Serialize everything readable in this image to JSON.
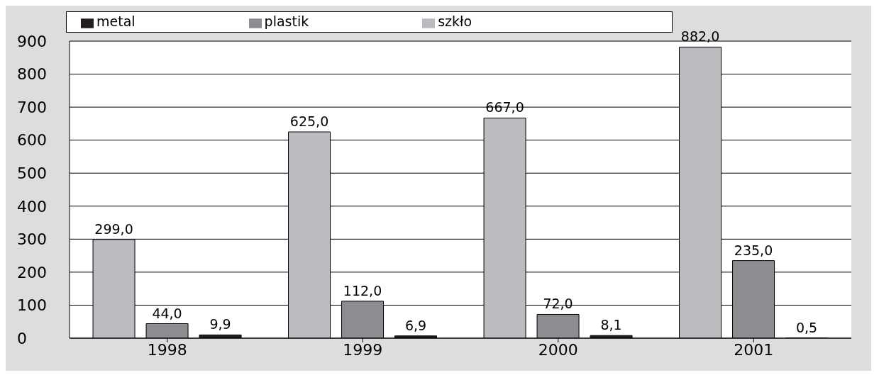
{
  "chart_data": {
    "type": "bar",
    "categories": [
      "1998",
      "1999",
      "2000",
      "2001"
    ],
    "series": [
      {
        "name": "szkło",
        "color": "#bbbcc0",
        "values": [
          299.0,
          625.0,
          667.0,
          882.0
        ],
        "value_labels": [
          "299,0",
          "625,0",
          "667,0",
          "882,0"
        ]
      },
      {
        "name": "plastik",
        "color": "#8c8d91",
        "values": [
          44.0,
          112.0,
          72.0,
          235.0
        ],
        "value_labels": [
          "44,0",
          "112,0",
          "72,0",
          "235,0"
        ]
      },
      {
        "name": "metal",
        "color": "#231f20",
        "values": [
          9.9,
          6.9,
          8.1,
          0.5
        ],
        "value_labels": [
          "9,9",
          "6,9",
          "8,1",
          "0,5"
        ]
      }
    ],
    "ylim": [
      0,
      900
    ],
    "yticks": [
      0,
      100,
      200,
      300,
      400,
      500,
      600,
      700,
      800,
      900
    ],
    "grid": "y",
    "legend": "top"
  }
}
